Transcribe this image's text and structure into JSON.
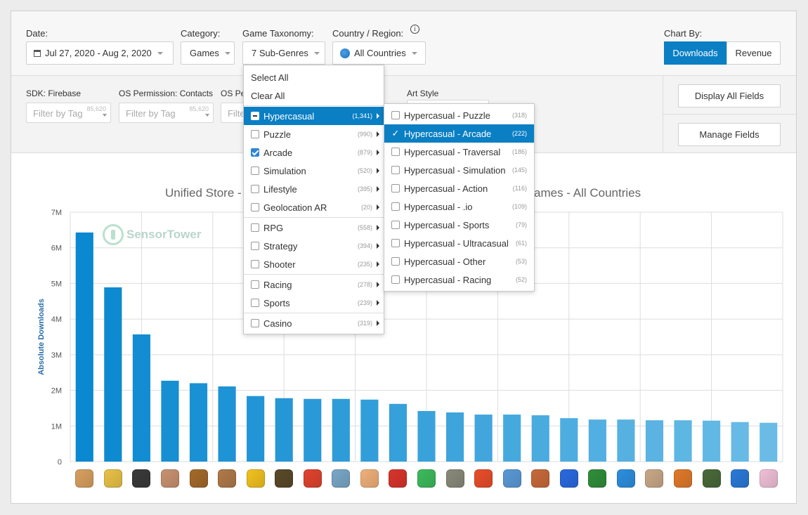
{
  "filters": {
    "date": {
      "label": "Date:",
      "value": "Jul 27, 2020 - Aug 2, 2020"
    },
    "category": {
      "label": "Category:",
      "value": "Games"
    },
    "taxonomy": {
      "label": "Game Taxonomy:",
      "value": "7 Sub-Genres"
    },
    "country": {
      "label": "Country / Region:",
      "value": "All Countries"
    },
    "chart_by": {
      "label": "Chart By:",
      "options": [
        "Downloads",
        "Revenue"
      ],
      "selected": "Downloads"
    }
  },
  "tag_filters": [
    {
      "label": "SDK: Firebase",
      "placeholder": "Filter by Tag",
      "count": "85,620"
    },
    {
      "label": "OS Permission: Contacts",
      "placeholder": "Filter by Tag",
      "count": "85,620"
    },
    {
      "label": "OS Pe",
      "placeholder": "Filte",
      "count": ""
    },
    {
      "label": "Art Style",
      "placeholder": "",
      "count": ""
    }
  ],
  "actions": {
    "display_all": "Display All Fields",
    "manage": "Manage Fields"
  },
  "genre_menu": {
    "select_all": "Select All",
    "clear_all": "Clear All",
    "groups": [
      [
        {
          "label": "Hypercasual",
          "count": "(1,341)",
          "state": "partial",
          "selected": true
        },
        {
          "label": "Puzzle",
          "count": "(990)",
          "state": "off"
        },
        {
          "label": "Arcade",
          "count": "(879)",
          "state": "on"
        },
        {
          "label": "Simulation",
          "count": "(520)",
          "state": "off"
        },
        {
          "label": "Lifestyle",
          "count": "(395)",
          "state": "off"
        },
        {
          "label": "Geolocation AR",
          "count": "(20)",
          "state": "off"
        }
      ],
      [
        {
          "label": "RPG",
          "count": "(558)",
          "state": "off"
        },
        {
          "label": "Strategy",
          "count": "(394)",
          "state": "off"
        },
        {
          "label": "Shooter",
          "count": "(235)",
          "state": "off"
        }
      ],
      [
        {
          "label": "Racing",
          "count": "(278)",
          "state": "off"
        },
        {
          "label": "Sports",
          "count": "(239)",
          "state": "off"
        }
      ],
      [
        {
          "label": "Casino",
          "count": "(319)",
          "state": "off"
        }
      ]
    ]
  },
  "subgenre_menu": [
    {
      "label": "Hypercasual - Puzzle",
      "count": "(318)",
      "state": "off"
    },
    {
      "label": "Hypercasual - Arcade",
      "count": "(222)",
      "state": "on"
    },
    {
      "label": "Hypercasual - Traversal",
      "count": "(186)",
      "state": "off"
    },
    {
      "label": "Hypercasual - Simulation",
      "count": "(145)",
      "state": "off"
    },
    {
      "label": "Hypercasual - Action",
      "count": "(116)",
      "state": "off"
    },
    {
      "label": "Hypercasual - .io",
      "count": "(109)",
      "state": "off"
    },
    {
      "label": "Hypercasual - Sports",
      "count": "(79)",
      "state": "off"
    },
    {
      "label": "Hypercasual - Ultracasual",
      "count": "(61)",
      "state": "off"
    },
    {
      "label": "Hypercasual - Other",
      "count": "(53)",
      "state": "off"
    },
    {
      "label": "Hypercasual - Racing",
      "count": "(52)",
      "state": "off"
    }
  ],
  "watermark": "SensorTower",
  "chart_title_left": "Unified Store -",
  "chart_title_right": "ames - All Countries",
  "chart_data": {
    "type": "bar",
    "ylabel": "Absolute Downloads",
    "ylim": [
      0,
      7000000
    ],
    "yticks": [
      "0",
      "1M",
      "2M",
      "3M",
      "4M",
      "5M",
      "6M",
      "7M"
    ],
    "grid": true,
    "values": [
      6430000,
      4890000,
      3570000,
      2270000,
      2200000,
      2110000,
      1840000,
      1780000,
      1760000,
      1760000,
      1740000,
      1620000,
      1420000,
      1380000,
      1320000,
      1320000,
      1300000,
      1220000,
      1180000,
      1180000,
      1160000,
      1160000,
      1150000,
      1110000,
      1090000
    ],
    "icon_colors": [
      "#d8a060",
      "#e9c248",
      "#3a3a3a",
      "#c99270",
      "#a46a2a",
      "#b07a4a",
      "#f2c21f",
      "#5a4a2a",
      "#e0442e",
      "#7aa7c8",
      "#f0b07a",
      "#d9342c",
      "#3dbb5c",
      "#8a8a7a",
      "#e94e2a",
      "#5a9ad8",
      "#c86a3a",
      "#2a6ae0",
      "#2f8f3a",
      "#2d8fe0",
      "#c9a888",
      "#e07a2a",
      "#4a6a3a",
      "#2a7ad8",
      "#f0c0d8"
    ]
  }
}
